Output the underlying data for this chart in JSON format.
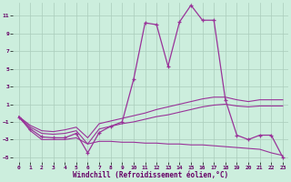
{
  "xlabel": "Windchill (Refroidissement éolien,°C)",
  "bg_color": "#cceedd",
  "grid_color": "#aaccbb",
  "line_color": "#993399",
  "xlim_min": -0.5,
  "xlim_max": 23.5,
  "ylim_min": -5.5,
  "ylim_max": 12.5,
  "xticks": [
    0,
    1,
    2,
    3,
    4,
    5,
    6,
    7,
    8,
    9,
    10,
    11,
    12,
    13,
    14,
    15,
    16,
    17,
    18,
    19,
    20,
    21,
    22,
    23
  ],
  "yticks": [
    -5,
    -3,
    -1,
    1,
    3,
    5,
    7,
    9,
    11
  ],
  "x": [
    0,
    1,
    2,
    3,
    4,
    5,
    6,
    7,
    8,
    9,
    10,
    11,
    12,
    13,
    14,
    15,
    16,
    17,
    18,
    19,
    20,
    21,
    22,
    23
  ],
  "main_line": [
    -0.5,
    -1.8,
    -2.7,
    -2.8,
    -2.8,
    -2.3,
    -4.5,
    -2.2,
    -1.5,
    -1.0,
    3.8,
    10.2,
    10.0,
    5.3,
    10.3,
    12.2,
    10.5,
    10.5,
    1.5,
    -2.5,
    -3.0,
    -2.5,
    -2.5,
    -5.0
  ],
  "upper_line": [
    -0.4,
    -1.4,
    -2.0,
    -2.1,
    -1.9,
    -1.6,
    -2.8,
    -1.2,
    -0.9,
    -0.6,
    -0.3,
    0.0,
    0.4,
    0.7,
    1.0,
    1.3,
    1.6,
    1.8,
    1.8,
    1.5,
    1.3,
    1.5,
    1.5,
    1.5
  ],
  "mid_line": [
    -0.4,
    -1.6,
    -2.3,
    -2.4,
    -2.3,
    -2.0,
    -3.5,
    -1.8,
    -1.5,
    -1.2,
    -1.0,
    -0.7,
    -0.4,
    -0.2,
    0.1,
    0.4,
    0.7,
    0.9,
    1.0,
    0.8,
    0.7,
    0.8,
    0.8,
    0.8
  ],
  "lower_line": [
    -0.4,
    -2.0,
    -3.0,
    -3.0,
    -3.0,
    -2.8,
    -3.5,
    -3.2,
    -3.2,
    -3.3,
    -3.3,
    -3.4,
    -3.4,
    -3.5,
    -3.5,
    -3.6,
    -3.6,
    -3.7,
    -3.8,
    -3.9,
    -4.0,
    -4.1,
    -4.5,
    -4.8
  ]
}
